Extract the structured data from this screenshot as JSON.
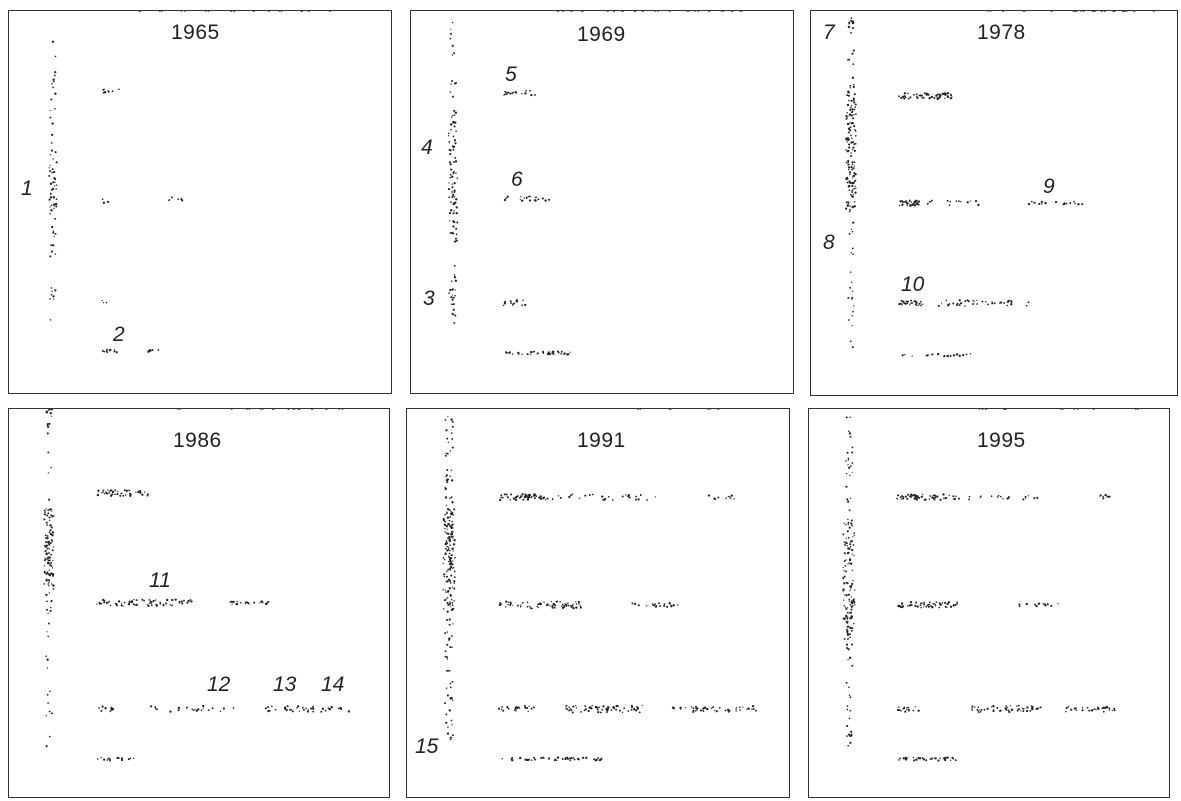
{
  "colors": {
    "ink": "#222222",
    "frame": "#333333",
    "paper": "#ffffff"
  },
  "panels": [
    {
      "year": "1965",
      "labels": [
        "1",
        "2"
      ]
    },
    {
      "year": "1969",
      "labels": [
        "5",
        "4",
        "6",
        "3"
      ]
    },
    {
      "year": "1978",
      "labels": [
        "7",
        "9",
        "8",
        "10"
      ]
    },
    {
      "year": "1986",
      "labels": [
        "11",
        "12",
        "13",
        "14"
      ]
    },
    {
      "year": "1991",
      "labels": [
        "15"
      ]
    },
    {
      "year": "1995",
      "labels": []
    }
  ]
}
